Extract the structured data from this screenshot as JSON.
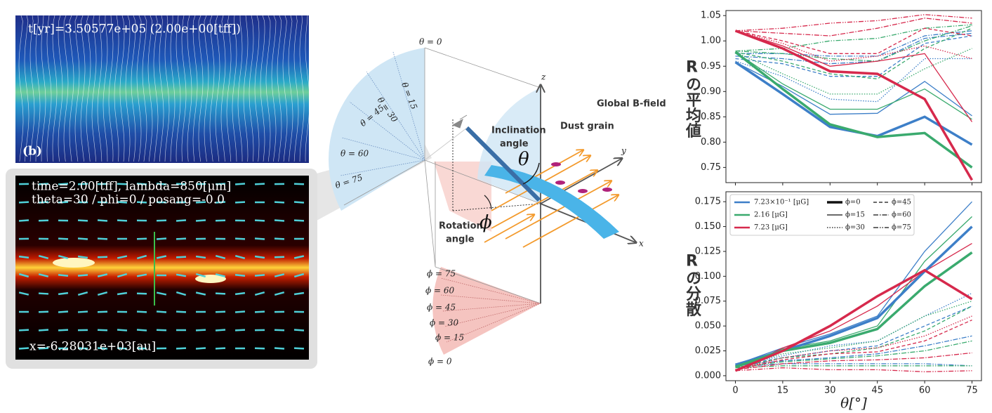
{
  "left_panel": {
    "top_image": {
      "caption": "t[yr]=3.50577e+05 (2.00e+00[tff])",
      "label": "(b)"
    },
    "bottom_image": {
      "lines": [
        "time=2.00[tff],  lambda=850[μm]",
        "theta=30 / phi=0 / posang=-0.0"
      ],
      "caption": "x=-6.28031e+03[au]"
    }
  },
  "diagram": {
    "theta_labels": [
      "θ = 0",
      "θ = 15",
      "θ = 30",
      "θ = 45",
      "θ = 60",
      "θ = 75"
    ],
    "phi_labels": [
      "ϕ = 75",
      "ϕ = 60",
      "ϕ = 45",
      "ϕ = 30",
      "ϕ = 15",
      "ϕ = 0"
    ],
    "axes": {
      "z": "z",
      "y": "y",
      "x": "x"
    },
    "global_b_field": "Global B-field",
    "dust_grain": "Dust grain",
    "inclination": [
      "Inclination",
      "angle"
    ],
    "theta_symbol": "θ",
    "rotation": [
      "Rotation",
      "angle"
    ],
    "phi_symbol": "ϕ"
  },
  "chart_data": [
    {
      "type": "line",
      "ylabel": "Rの平均値",
      "x": [
        0,
        15,
        30,
        45,
        60,
        75
      ],
      "xlim": [
        -3,
        78
      ],
      "xticks": [
        0,
        15,
        30,
        45,
        60,
        75
      ],
      "ylim": [
        0.72,
        1.06
      ],
      "yticks": [
        0.75,
        {
          "value": 0.8,
          "label": "0.80"
        },
        0.85,
        {
          "value": 0.9,
          "label": "0.90"
        },
        0.95,
        {
          "value": 1,
          "label": "1.00"
        },
        1.05
      ],
      "line_styles": [
        {
          "dash": "none",
          "width": 3.5
        },
        {
          "dash": "none",
          "width": 1.3
        },
        {
          "dash": "1.5,2",
          "width": 1.3
        },
        {
          "dash": "5,3",
          "width": 1.3
        },
        {
          "dash": "7,2,1.5,2",
          "width": 1.3
        },
        {
          "dash": "7,2,1.5,2,1.5,2",
          "width": 1.3
        }
      ],
      "series": [
        {
          "color": "#3d7fc8",
          "values": [
            [
              0.958,
              0.895,
              0.83,
              0.812,
              0.85,
              0.795
            ],
            [
              0.958,
              0.91,
              0.855,
              0.857,
              0.92,
              0.852
            ],
            [
              0.96,
              0.93,
              0.885,
              0.88,
              0.965,
              0.965
            ],
            [
              0.965,
              0.955,
              0.93,
              0.93,
              0.995,
              1.01
            ],
            [
              0.97,
              0.965,
              0.955,
              0.96,
              1.005,
              1.015
            ],
            [
              0.975,
              0.975,
              0.97,
              0.97,
              1.01,
              1.02
            ]
          ]
        },
        {
          "color": "#3aaa6e",
          "values": [
            [
              0.978,
              0.905,
              0.835,
              0.81,
              0.818,
              0.75
            ],
            [
              0.978,
              0.915,
              0.865,
              0.865,
              0.905,
              0.845
            ],
            [
              0.978,
              0.935,
              0.895,
              0.895,
              0.945,
              0.985
            ],
            [
              0.978,
              0.96,
              0.935,
              0.925,
              0.985,
              1.025
            ],
            [
              0.98,
              0.975,
              0.965,
              0.96,
              1.0,
              1.03
            ],
            [
              0.98,
              0.985,
              1.0,
              1.005,
              1.025,
              1.032
            ]
          ]
        },
        {
          "color": "#d6294c",
          "values": [
            [
              1.02,
              0.985,
              0.94,
              0.935,
              0.885,
              0.725
            ],
            [
              1.02,
              0.99,
              0.95,
              0.96,
              0.975,
              0.84
            ],
            [
              1.02,
              0.995,
              0.96,
              0.97,
              0.99,
              0.965
            ],
            [
              1.02,
              1.0,
              0.975,
              0.975,
              1.025,
              1.01
            ],
            [
              1.02,
              1.015,
              1.01,
              1.025,
              1.045,
              1.035
            ],
            [
              1.02,
              1.025,
              1.035,
              1.04,
              1.052,
              1.045
            ]
          ]
        }
      ]
    },
    {
      "type": "line",
      "ylabel": "Rの分散",
      "xlabel": "θ[°]",
      "legend": true,
      "x": [
        0,
        15,
        30,
        45,
        60,
        75
      ],
      "xlim": [
        -3,
        78
      ],
      "xticks": [
        0,
        15,
        30,
        45,
        60,
        75
      ],
      "ylim": [
        -0.005,
        0.185
      ],
      "yticks": [
        {
          "value": 0,
          "label": "0.000"
        },
        0.025,
        {
          "value": 0.05,
          "label": "0.050"
        },
        0.075,
        {
          "value": 0.1,
          "label": "0.100"
        },
        0.125,
        {
          "value": 0.15,
          "label": "0.150"
        },
        0.175
      ],
      "line_styles": [
        {
          "name": "ϕ=0",
          "dash": "none",
          "width": 3.5
        },
        {
          "name": "ϕ=15",
          "dash": "none",
          "width": 1.3
        },
        {
          "name": "ϕ=30",
          "dash": "1.5,2",
          "width": 1.3
        },
        {
          "name": "ϕ=45",
          "dash": "5,3",
          "width": 1.3
        },
        {
          "name": "ϕ=60",
          "dash": "7,2,1.5,2",
          "width": 1.3
        },
        {
          "name": "ϕ=75",
          "dash": "7,2,1.5,2,1.5,2",
          "width": 1.3
        }
      ],
      "series": [
        {
          "name": "7.23×10⁻¹ [μG]",
          "color": "#3d7fc8",
          "values": [
            [
              0.011,
              0.025,
              0.04,
              0.058,
              0.105,
              0.15
            ],
            [
              0.011,
              0.028,
              0.042,
              0.06,
              0.125,
              0.175
            ],
            [
              0.01,
              0.02,
              0.03,
              0.035,
              0.06,
              0.083
            ],
            [
              0.01,
              0.018,
              0.025,
              0.03,
              0.05,
              0.07
            ],
            [
              0.01,
              0.015,
              0.018,
              0.022,
              0.03,
              0.04
            ],
            [
              0.009,
              0.012,
              0.012,
              0.012,
              0.012,
              0.01
            ]
          ]
        },
        {
          "name": "2.16 [μG]",
          "color": "#3aaa6e",
          "values": [
            [
              0.009,
              0.025,
              0.033,
              0.047,
              0.09,
              0.124
            ],
            [
              0.009,
              0.027,
              0.035,
              0.05,
              0.115,
              0.16
            ],
            [
              0.009,
              0.022,
              0.028,
              0.035,
              0.06,
              0.075
            ],
            [
              0.008,
              0.018,
              0.022,
              0.028,
              0.045,
              0.07
            ],
            [
              0.008,
              0.014,
              0.017,
              0.02,
              0.025,
              0.035
            ],
            [
              0.008,
              0.01,
              0.01,
              0.01,
              0.01,
              0.01
            ]
          ]
        },
        {
          "name": "7.23 [μG]",
          "color": "#d6294c",
          "values": [
            [
              0.005,
              0.025,
              0.05,
              0.08,
              0.106,
              0.077
            ],
            [
              0.005,
              0.028,
              0.045,
              0.07,
              0.105,
              0.133
            ],
            [
              0.006,
              0.018,
              0.025,
              0.028,
              0.04,
              0.06
            ],
            [
              0.006,
              0.016,
              0.022,
              0.024,
              0.035,
              0.056
            ],
            [
              0.006,
              0.012,
              0.015,
              0.016,
              0.018,
              0.023
            ],
            [
              0.005,
              0.008,
              0.006,
              0.006,
              0.004,
              0.005
            ]
          ]
        }
      ]
    }
  ]
}
